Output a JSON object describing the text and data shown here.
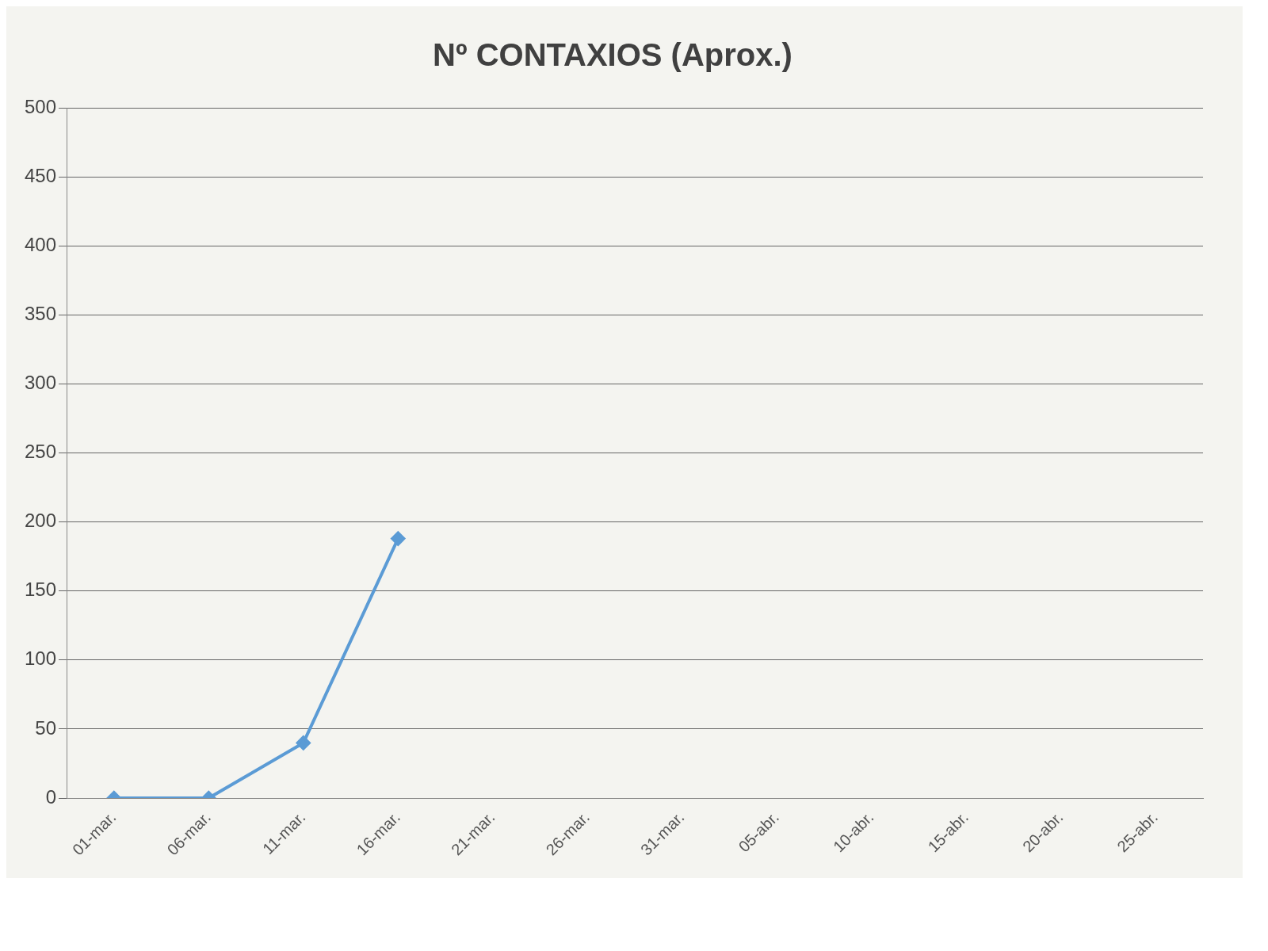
{
  "chart_data": {
    "type": "line",
    "title": "Nº CONTAXIOS (Aprox.)",
    "categories": [
      "01-mar.",
      "06-mar.",
      "11-mar.",
      "16-mar.",
      "21-mar.",
      "26-mar.",
      "31-mar.",
      "05-abr.",
      "10-abr.",
      "15-abr.",
      "20-abr.",
      "25-abr."
    ],
    "series": [
      {
        "color": "#5b9bd5",
        "values": [
          0,
          0,
          40,
          188,
          null,
          null,
          null,
          null,
          null,
          null,
          null,
          null
        ]
      }
    ],
    "ylim": [
      0,
      500
    ],
    "yticks": [
      0,
      50,
      100,
      150,
      200,
      250,
      300,
      350,
      400,
      450,
      500
    ],
    "grid": "y",
    "legend": false,
    "marker": "diamond",
    "line_style": "solid"
  }
}
